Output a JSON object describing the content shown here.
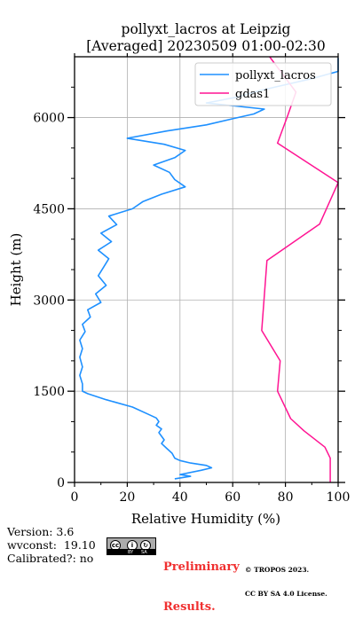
{
  "chart_data": {
    "type": "line",
    "title": "pollyxt_lacros at Leipzig",
    "subtitle": "[Averaged] 20230509 01:00-02:30",
    "xlabel": "Relative Humidity (%)",
    "ylabel": "Height (m)",
    "xlim": [
      0,
      100
    ],
    "ylim": [
      0,
      7000
    ],
    "xticks": [
      "0",
      "20",
      "40",
      "60",
      "80",
      "100"
    ],
    "yticks": [
      "0",
      "1500",
      "3000",
      "4500",
      "6000"
    ],
    "grid": true,
    "legend_position": "top-right",
    "series": [
      {
        "name": "pollyxt_lacros",
        "color": "#1e90ff",
        "points": [
          [
            38,
            60
          ],
          [
            44,
            100
          ],
          [
            40,
            130
          ],
          [
            48,
            200
          ],
          [
            52,
            240
          ],
          [
            50,
            280
          ],
          [
            44,
            320
          ],
          [
            40,
            360
          ],
          [
            38,
            400
          ],
          [
            37,
            480
          ],
          [
            35,
            560
          ],
          [
            33,
            640
          ],
          [
            34,
            700
          ],
          [
            33,
            760
          ],
          [
            32,
            820
          ],
          [
            33,
            880
          ],
          [
            31,
            940
          ],
          [
            32,
            1000
          ],
          [
            31,
            1060
          ],
          [
            28,
            1120
          ],
          [
            22,
            1240
          ],
          [
            12,
            1360
          ],
          [
            5,
            1460
          ],
          [
            3,
            1500
          ],
          [
            3,
            1620
          ],
          [
            2,
            1760
          ],
          [
            3,
            1900
          ],
          [
            2,
            2060
          ],
          [
            3,
            2200
          ],
          [
            2,
            2340
          ],
          [
            4,
            2480
          ],
          [
            3,
            2600
          ],
          [
            6,
            2720
          ],
          [
            5,
            2840
          ],
          [
            10,
            2960
          ],
          [
            8,
            3100
          ],
          [
            12,
            3240
          ],
          [
            9,
            3400
          ],
          [
            11,
            3540
          ],
          [
            13,
            3680
          ],
          [
            9,
            3820
          ],
          [
            14,
            3960
          ],
          [
            10,
            4100
          ],
          [
            16,
            4240
          ],
          [
            13,
            4380
          ],
          [
            22,
            4500
          ],
          [
            26,
            4620
          ],
          [
            33,
            4740
          ],
          [
            42,
            4860
          ],
          [
            38,
            4980
          ],
          [
            36,
            5100
          ],
          [
            30,
            5220
          ],
          [
            38,
            5340
          ],
          [
            42,
            5460
          ],
          [
            34,
            5560
          ],
          [
            20,
            5660
          ],
          [
            35,
            5780
          ],
          [
            50,
            5880
          ],
          [
            60,
            5980
          ],
          [
            68,
            6060
          ],
          [
            72,
            6140
          ],
          [
            50,
            6240
          ],
          [
            62,
            6340
          ],
          [
            70,
            6440
          ],
          [
            80,
            6540
          ],
          [
            90,
            6640
          ],
          [
            100,
            6760
          ],
          [
            100,
            6880
          ],
          [
            100,
            6980
          ]
        ]
      },
      {
        "name": "gdas1",
        "color": "#ff1493",
        "points": [
          [
            97,
            0
          ],
          [
            97,
            400
          ],
          [
            95,
            580
          ],
          [
            87,
            850
          ],
          [
            82,
            1050
          ],
          [
            77,
            1500
          ],
          [
            78,
            2000
          ],
          [
            71,
            2500
          ],
          [
            73,
            3650
          ],
          [
            93,
            4250
          ],
          [
            100,
            4930
          ],
          [
            77,
            5580
          ],
          [
            81,
            6050
          ],
          [
            84,
            6420
          ],
          [
            74,
            7000
          ]
        ]
      }
    ]
  },
  "footer": {
    "version_line": "Version: 3.6",
    "wvconst_line": "wvconst:  19.10",
    "calibrated_line": "Calibrated?: no",
    "preliminary_line1": "Preliminary",
    "preliminary_line2": "Results.",
    "copyright_line1": "© TROPOS 2023.",
    "copyright_line2": "CC BY SA 4.0 License.",
    "cc_badge_symbol": "cc",
    "cc_badge_by": "BY",
    "cc_badge_sa": "SA"
  },
  "colors": {
    "lidar": "#1e90ff",
    "gdas1": "#ff1493",
    "preliminary": "#f03030",
    "grid": "#b0b0b0"
  }
}
